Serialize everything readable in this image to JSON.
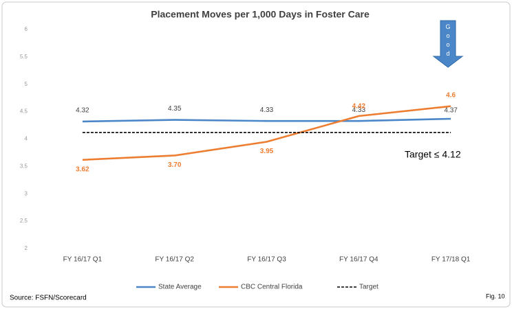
{
  "chart_data": {
    "type": "line",
    "title": "Placement Moves per 1,000 Days in Foster Care",
    "categories": [
      "FY 16/17 Q1",
      "FY 16/17 Q2",
      "FY 16/17 Q3",
      "FY 16/17 Q4",
      "FY 17/18 Q1"
    ],
    "series": [
      {
        "name": "State Average",
        "color": "#4a86c8",
        "values": [
          4.32,
          4.35,
          4.33,
          4.33,
          4.37
        ]
      },
      {
        "name": "CBC Central Florida",
        "color": "#ed7d31",
        "values": [
          3.62,
          3.7,
          3.95,
          4.42,
          4.6
        ],
        "value_labels": [
          "3.62",
          "3.70",
          "3.95",
          "4.42",
          "4.6"
        ]
      },
      {
        "name": "Target",
        "color": "#000000",
        "dashed": true,
        "values": [
          4.12,
          4.12,
          4.12,
          4.12,
          4.12
        ]
      }
    ],
    "ylim": [
      2,
      6
    ],
    "yticks": [
      2,
      2.5,
      3,
      3.5,
      4,
      4.5,
      5,
      5.5,
      6
    ],
    "grid": false,
    "legend": "bottom",
    "annotations": [
      "Target ≤ 4.12",
      "Good"
    ],
    "source": "Source: FSFN/Scorecard",
    "figure": "Fig. 10"
  }
}
